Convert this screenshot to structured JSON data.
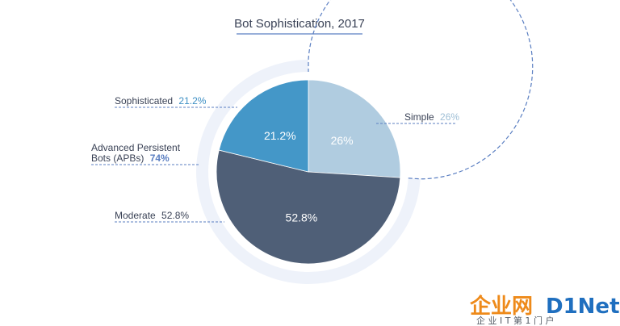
{
  "chart_data": {
    "type": "pie",
    "title": "Bot Sophistication, 2017",
    "slices": [
      {
        "name": "Simple",
        "value": 26,
        "label": "26%",
        "color": "#b0cce0",
        "callout_name": "Simple",
        "callout_value": "26%",
        "callout_value_color": "#9fbfd6"
      },
      {
        "name": "Moderate",
        "value": 52.8,
        "label": "52.8%",
        "color": "#4f5f77",
        "callout_name": "Moderate",
        "callout_value": "52.8%",
        "callout_value_color": "#3a4256"
      },
      {
        "name": "Sophisticated",
        "value": 21.2,
        "label": "21.2%",
        "color": "#4497c8",
        "callout_name": "Sophisticated",
        "callout_value": "21.2%",
        "callout_value_color": "#3d8fc4"
      }
    ],
    "group": {
      "label_line1": "Advanced Persistent",
      "label_line2": "Bots (APBs)",
      "value": "74%",
      "covers": [
        "Moderate",
        "Sophisticated"
      ]
    }
  },
  "watermark": {
    "brand_cn": "企业网",
    "brand_en": "D1Net",
    "tagline": "企 业 I T 第 1 门 户"
  },
  "colors": {
    "ring_band": "#eef2fa",
    "ring_dash": "#5b7fc2",
    "title_underline": "#5b7fc2",
    "text": "#3a4256"
  }
}
